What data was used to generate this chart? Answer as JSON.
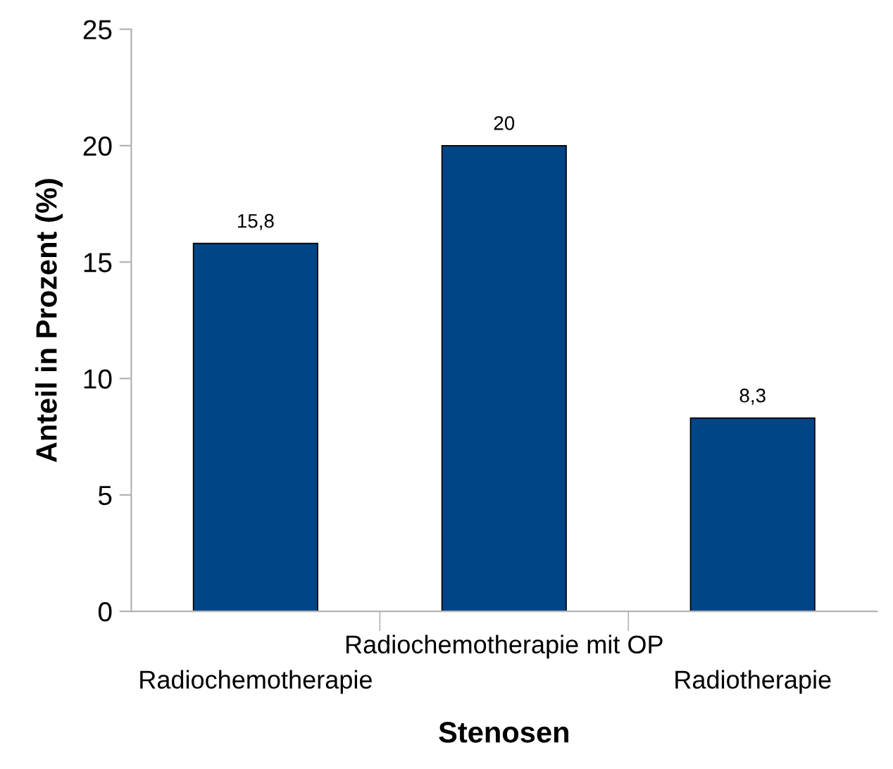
{
  "chart_data": {
    "type": "bar",
    "xlabel": "Stenosen",
    "ylabel": "Anteil in Prozent (%)",
    "categories": [
      "Radiochemotherapie",
      "Radiochemotherapie mit OP",
      "Radiotherapie"
    ],
    "values": [
      15.8,
      20,
      8.3
    ],
    "value_labels": [
      "15,8",
      "20",
      "8,3"
    ],
    "color": "#004586",
    "ylim": [
      0,
      25
    ],
    "yticks": [
      0,
      5,
      10,
      15,
      20,
      25
    ],
    "grid": false
  }
}
